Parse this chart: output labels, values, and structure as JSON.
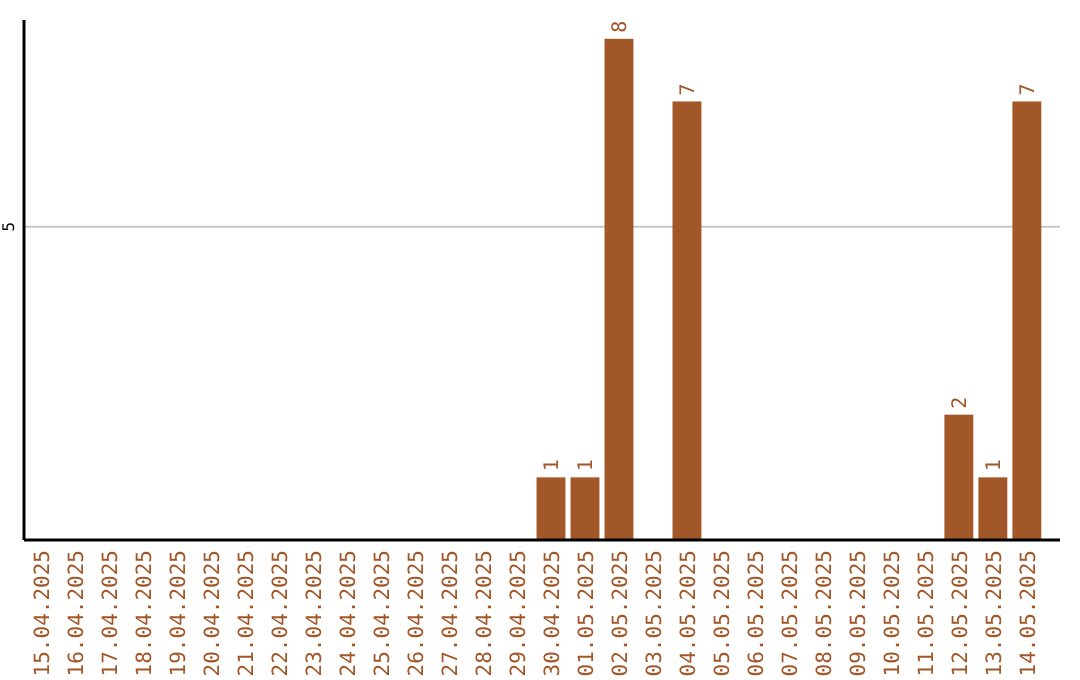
{
  "chart_data": {
    "type": "bar",
    "categories": [
      "15.04.2025",
      "16.04.2025",
      "17.04.2025",
      "18.04.2025",
      "19.04.2025",
      "20.04.2025",
      "21.04.2025",
      "22.04.2025",
      "23.04.2025",
      "24.04.2025",
      "25.04.2025",
      "26.04.2025",
      "27.04.2025",
      "28.04.2025",
      "29.04.2025",
      "30.04.2025",
      "01.05.2025",
      "02.05.2025",
      "03.05.2025",
      "04.05.2025",
      "05.05.2025",
      "06.05.2025",
      "07.05.2025",
      "08.05.2025",
      "09.05.2025",
      "10.05.2025",
      "11.05.2025",
      "12.05.2025",
      "13.05.2025",
      "14.05.2025"
    ],
    "values": [
      null,
      null,
      null,
      null,
      null,
      null,
      null,
      null,
      null,
      null,
      null,
      null,
      null,
      null,
      null,
      1,
      1,
      8,
      null,
      7,
      null,
      null,
      null,
      null,
      null,
      null,
      null,
      2,
      1,
      7
    ],
    "data_labels": true,
    "color": "#a15728",
    "ylim": [
      0,
      8.3
    ],
    "yticks": [
      5
    ],
    "grid": "y"
  }
}
